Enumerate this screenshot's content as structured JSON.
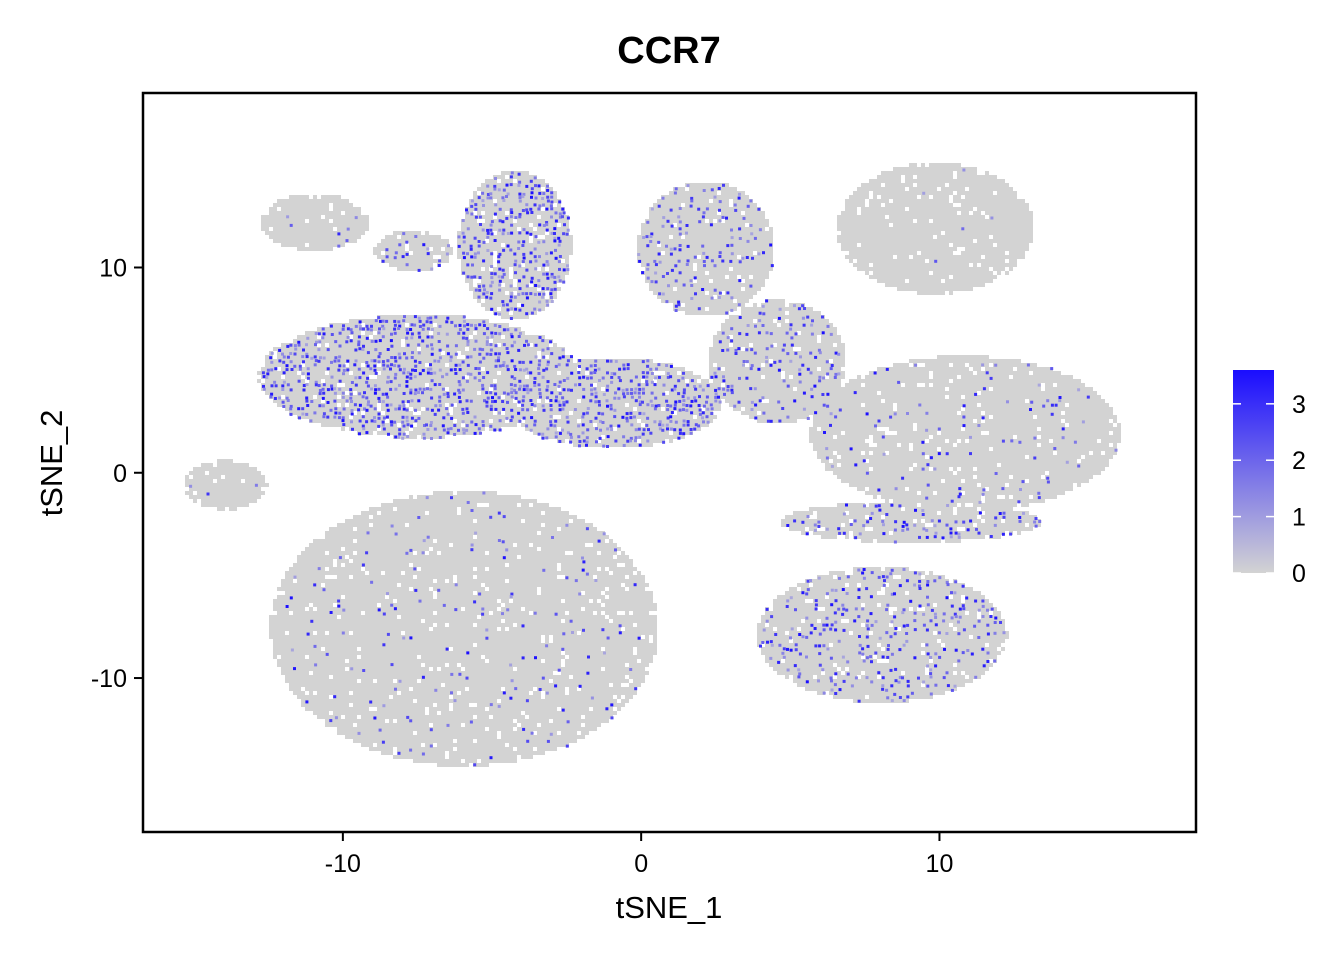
{
  "chart_data": {
    "type": "scatter",
    "title": "CCR7",
    "xlabel": "tSNE_1",
    "ylabel": "tSNE_2",
    "xlim": [
      -16.7,
      18.6
    ],
    "ylim": [
      -17.5,
      18.5
    ],
    "x_ticks": [
      -10,
      0,
      10
    ],
    "x_tick_labels": [
      "-10",
      "0",
      "10"
    ],
    "y_ticks": [
      -10,
      0,
      10
    ],
    "y_tick_labels": [
      "-10",
      "0",
      "10"
    ],
    "grid": false,
    "legend_position": "right",
    "color_scale": {
      "low_color": "#d3d3d3",
      "high_color": "#1a0dff",
      "min": 0,
      "max": 3.6,
      "ticks": [
        0,
        1,
        2,
        3
      ],
      "tick_labels": [
        "0",
        "1",
        "2",
        "3"
      ]
    },
    "clusters": [
      {
        "name": "cluster-upper-left-naive",
        "center": [
          -7.5,
          4.8
        ],
        "radius": [
          5.4,
          3.0
        ],
        "expression": "high"
      },
      {
        "name": "cluster-upper-left-finger",
        "center": [
          -4.3,
          11.2
        ],
        "radius": [
          1.9,
          3.6
        ],
        "expression": "high"
      },
      {
        "name": "cluster-mid-diagonal",
        "center": [
          -1.0,
          3.5
        ],
        "radius": [
          3.6,
          2.2
        ],
        "expression": "high"
      },
      {
        "name": "cluster-top-small-left",
        "center": [
          -11.0,
          12.3
        ],
        "radius": [
          1.8,
          1.4
        ],
        "expression": "low"
      },
      {
        "name": "cluster-top-small-mid",
        "center": [
          -7.7,
          10.9
        ],
        "radius": [
          1.3,
          1.0
        ],
        "expression": "medium"
      },
      {
        "name": "cluster-far-left-island",
        "center": [
          -14.0,
          -0.5
        ],
        "radius": [
          1.4,
          1.2
        ],
        "expression": "low"
      },
      {
        "name": "cluster-top-middle",
        "center": [
          2.1,
          11.0
        ],
        "radius": [
          2.3,
          3.3
        ],
        "expression": "medium"
      },
      {
        "name": "cluster-middle-right-lobe",
        "center": [
          4.5,
          5.5
        ],
        "radius": [
          2.3,
          3.0
        ],
        "expression": "medium"
      },
      {
        "name": "cluster-top-right",
        "center": [
          9.8,
          12.0
        ],
        "radius": [
          3.3,
          3.2
        ],
        "expression": "none"
      },
      {
        "name": "cluster-right-large",
        "center": [
          10.8,
          2.0
        ],
        "radius": [
          5.2,
          3.8
        ],
        "expression": "low"
      },
      {
        "name": "cluster-bottom-left-large",
        "center": [
          -6.0,
          -7.5
        ],
        "radius": [
          6.5,
          6.7
        ],
        "expression": "low"
      },
      {
        "name": "cluster-bottom-right",
        "center": [
          8.0,
          -7.8
        ],
        "radius": [
          4.2,
          3.3
        ],
        "expression": "medium"
      },
      {
        "name": "cluster-tail-right",
        "center": [
          9.0,
          -2.3
        ],
        "radius": [
          4.4,
          1.0
        ],
        "expression": "medium"
      }
    ]
  }
}
